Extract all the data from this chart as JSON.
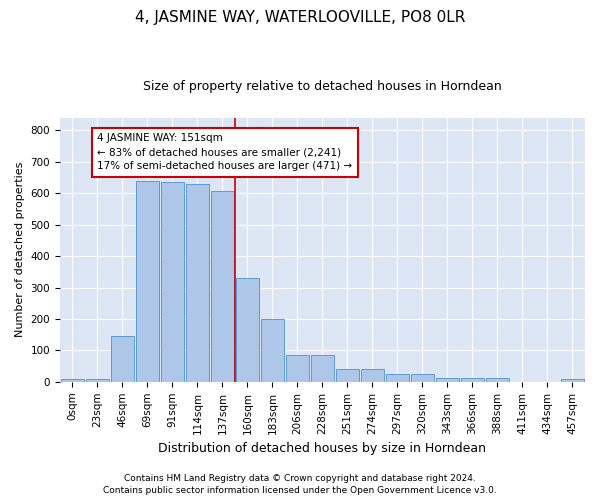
{
  "title": "4, JASMINE WAY, WATERLOOVILLE, PO8 0LR",
  "subtitle": "Size of property relative to detached houses in Horndean",
  "xlabel": "Distribution of detached houses by size in Horndean",
  "ylabel": "Number of detached properties",
  "bar_color": "#aec6e8",
  "bar_edge_color": "#5b9bd5",
  "background_color": "#dce6f5",
  "bins": [
    "0sqm",
    "23sqm",
    "46sqm",
    "69sqm",
    "91sqm",
    "114sqm",
    "137sqm",
    "160sqm",
    "183sqm",
    "206sqm",
    "228sqm",
    "251sqm",
    "274sqm",
    "297sqm",
    "320sqm",
    "343sqm",
    "366sqm",
    "388sqm",
    "411sqm",
    "434sqm",
    "457sqm"
  ],
  "values": [
    8,
    8,
    145,
    640,
    635,
    630,
    607,
    330,
    200,
    85,
    85,
    40,
    40,
    25,
    25,
    12,
    12,
    12,
    0,
    0,
    8
  ],
  "ylim": [
    0,
    840
  ],
  "yticks": [
    0,
    100,
    200,
    300,
    400,
    500,
    600,
    700,
    800
  ],
  "property_bin_index": 7,
  "red_line_color": "#cc0000",
  "annotation_line1": "4 JASMINE WAY: 151sqm",
  "annotation_line2": "← 83% of detached houses are smaller (2,241)",
  "annotation_line3": "17% of semi-detached houses are larger (471) →",
  "footer_line1": "Contains HM Land Registry data © Crown copyright and database right 2024.",
  "footer_line2": "Contains public sector information licensed under the Open Government Licence v3.0.",
  "title_fontsize": 11,
  "subtitle_fontsize": 9,
  "ylabel_fontsize": 8,
  "xlabel_fontsize": 9,
  "tick_fontsize": 7.5,
  "footer_fontsize": 6.5
}
